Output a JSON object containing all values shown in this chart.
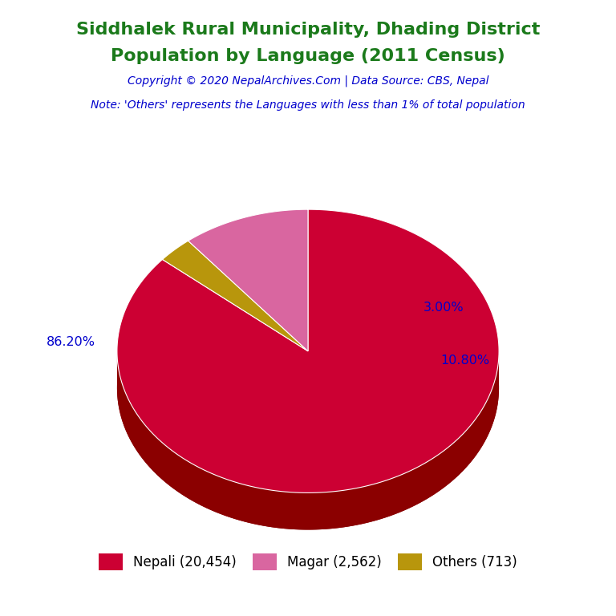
{
  "title_line1": "Siddhalek Rural Municipality, Dhading District",
  "title_line2": "Population by Language (2011 Census)",
  "copyright": "Copyright © 2020 NepalArchives.Com | Data Source: CBS, Nepal",
  "note": "Note: 'Others' represents the Languages with less than 1% of total population",
  "labels": [
    "Nepali",
    "Magar",
    "Others"
  ],
  "values": [
    20454,
    2562,
    713
  ],
  "percentages": [
    86.2,
    10.8,
    3.0
  ],
  "colors": [
    "#CC0033",
    "#D966A0",
    "#B8960C"
  ],
  "shadow_colors": [
    "#8B0000",
    "#8B3060",
    "#7A6000"
  ],
  "legend_labels": [
    "Nepali (20,454)",
    "Magar (2,562)",
    "Others (713)"
  ],
  "title_color": "#1B7A1B",
  "copyright_color": "#0000CD",
  "note_color": "#0000CD",
  "label_color": "#0000CD",
  "background_color": "#FFFFFF",
  "slice_order": [
    0,
    2,
    1
  ],
  "start_angle": 90
}
